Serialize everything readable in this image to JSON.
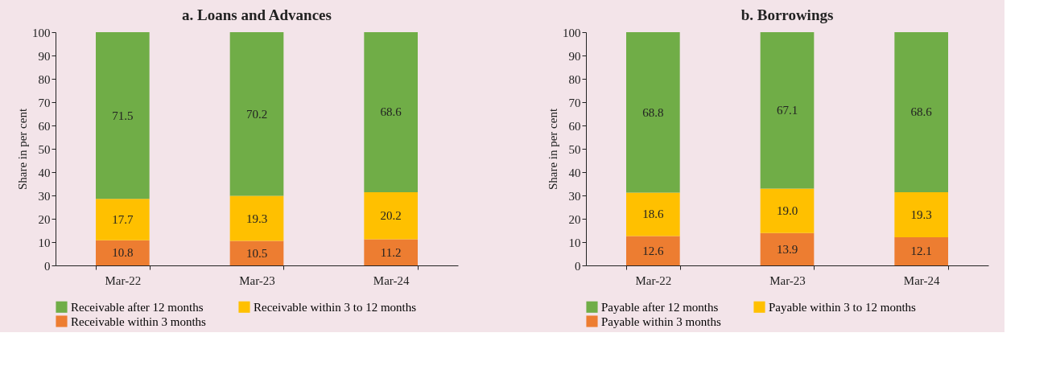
{
  "chart_data": [
    {
      "type": "bar",
      "title": "a. Loans and Advances",
      "ylabel": "Share in per cent",
      "categories": [
        "Mar-22",
        "Mar-23",
        "Mar-24"
      ],
      "stacked": true,
      "legend": "bottom",
      "grid": false,
      "ylim": [
        0,
        100
      ],
      "yticks": [
        0,
        10,
        20,
        30,
        40,
        50,
        60,
        70,
        80,
        90,
        100
      ],
      "series": [
        {
          "name": "Receivable within 3 months",
          "color": "#ed7d31",
          "values": [
            10.8,
            10.5,
            11.2
          ],
          "value_labels": [
            "10.8",
            "10.5",
            "11.2"
          ]
        },
        {
          "name": "Receivable within 3 to 12 months",
          "color": "#ffc000",
          "values": [
            17.7,
            19.3,
            20.2
          ],
          "value_labels": [
            "17.7",
            "19.3",
            "20.2"
          ]
        },
        {
          "name": "Receivable after 12 months",
          "color": "#70ad47",
          "values": [
            71.5,
            70.2,
            68.6
          ],
          "value_labels": [
            "71.5",
            "70.2",
            "68.6"
          ]
        }
      ]
    },
    {
      "type": "bar",
      "title": "b. Borrowings",
      "ylabel": "Share in per cent",
      "categories": [
        "Mar-22",
        "Mar-23",
        "Mar-24"
      ],
      "stacked": true,
      "legend": "bottom",
      "grid": false,
      "ylim": [
        0,
        100
      ],
      "yticks": [
        0,
        10,
        20,
        30,
        40,
        50,
        60,
        70,
        80,
        90,
        100
      ],
      "series": [
        {
          "name": "Payable within 3 months",
          "color": "#ed7d31",
          "values": [
            12.6,
            13.9,
            12.1
          ],
          "value_labels": [
            "12.6",
            "13.9",
            "12.1"
          ]
        },
        {
          "name": "Payable within 3 to 12 months",
          "color": "#ffc000",
          "values": [
            18.6,
            19.0,
            19.3
          ],
          "value_labels": [
            "18.6",
            "19.0",
            "19.3"
          ]
        },
        {
          "name": "Payable after 12 months",
          "color": "#70ad47",
          "values": [
            68.8,
            67.1,
            68.6
          ],
          "value_labels": [
            "68.8",
            "67.1",
            "68.6"
          ]
        }
      ]
    }
  ]
}
